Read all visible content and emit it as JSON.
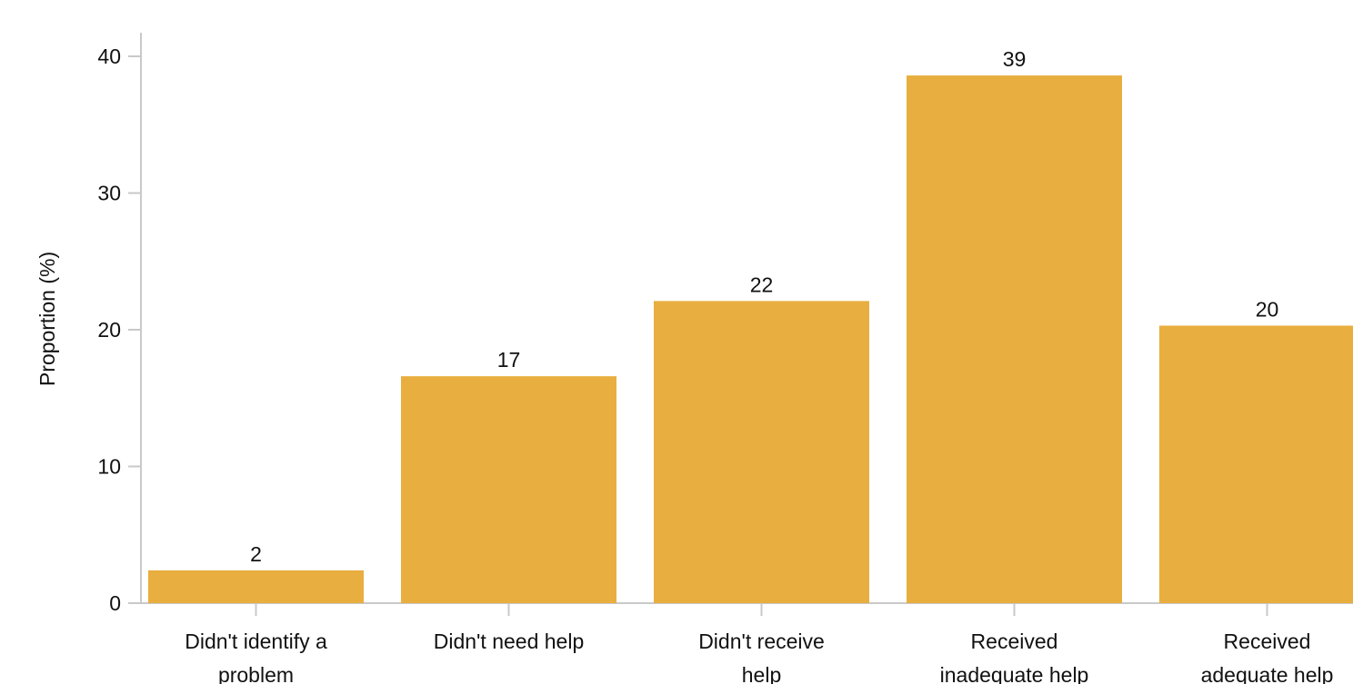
{
  "chart_data": {
    "type": "bar",
    "categories": [
      [
        "Didn't identify a",
        "problem"
      ],
      [
        "Didn't need help"
      ],
      [
        "Didn't receive",
        "help"
      ],
      [
        "Received",
        "inadequate help"
      ],
      [
        "Received",
        "adequate help"
      ]
    ],
    "values": [
      2.4,
      16.6,
      22.1,
      38.6,
      20.3
    ],
    "value_labels": [
      "2",
      "17",
      "22",
      "39",
      "20"
    ],
    "title": "",
    "xlabel": "",
    "ylabel": "Proportion (%)",
    "ylim": [
      0,
      40
    ],
    "yticks": [
      0,
      10,
      20,
      30,
      40
    ],
    "ytick_labels": [
      "0",
      "10",
      "20",
      "30",
      "40"
    ],
    "grid": false,
    "colors": {
      "bar": "#e8ae3f",
      "axis": "#c9c9c9",
      "text": "#111111"
    }
  }
}
